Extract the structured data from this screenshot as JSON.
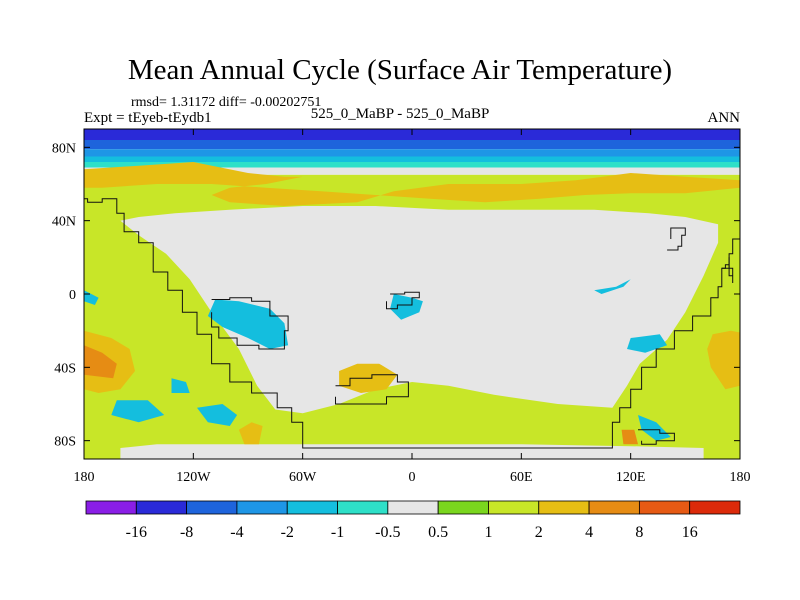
{
  "title": "Mean Annual Cycle (Surface Air Temperature)",
  "stats_line": "rmsd= 1.31172 diff= -0.00202751",
  "experiment_line": "Expt = tEyeb-tEydb1",
  "case_line": "525_0_MaBP - 525_0_MaBP",
  "season": "ANN",
  "chart_data": {
    "type": "heatmap",
    "title": "Mean Annual Cycle (Surface Air Temperature)",
    "projection": "cylindrical equidistant map, lon -180..180, lat -90..90",
    "x_range": [
      -180,
      180
    ],
    "y_range": [
      -90,
      90
    ],
    "x_ticks": [
      {
        "value": -180,
        "label": "180"
      },
      {
        "value": -120,
        "label": "120W"
      },
      {
        "value": -60,
        "label": "60W"
      },
      {
        "value": 0,
        "label": "0"
      },
      {
        "value": 60,
        "label": "60E"
      },
      {
        "value": 120,
        "label": "120E"
      },
      {
        "value": 180,
        "label": "180"
      }
    ],
    "y_ticks": [
      {
        "value": 80,
        "label": "80N"
      },
      {
        "value": 40,
        "label": "40N"
      },
      {
        "value": 0,
        "label": "0"
      },
      {
        "value": -40,
        "label": "40S"
      },
      {
        "value": -80,
        "label": "80S"
      }
    ],
    "colorbar": {
      "orientation": "horizontal",
      "labels": [
        "-16",
        "-8",
        "-4",
        "-2",
        "-1",
        "-0.5",
        "0.5",
        "1",
        "2",
        "4",
        "8",
        "16"
      ],
      "colors": [
        "#8a1ee6",
        "#2a2ad8",
        "#1e64dc",
        "#1e96e6",
        "#14bede",
        "#2ee0c8",
        "#e6e6e6",
        "#7ad61e",
        "#c8e628",
        "#e6be14",
        "#e68c14",
        "#e65a14",
        "#dc2a0a"
      ]
    },
    "zonal_bands": [
      {
        "lat_min": 84,
        "lat_max": 90,
        "category": "-8"
      },
      {
        "lat_min": 79,
        "lat_max": 84,
        "category": "-4"
      },
      {
        "lat_min": 75,
        "lat_max": 79,
        "category": "-2"
      },
      {
        "lat_min": 72,
        "lat_max": 75,
        "category": "-1"
      },
      {
        "lat_min": 69,
        "lat_max": 72,
        "category": "-0.5"
      },
      {
        "lat_min": 65,
        "lat_max": 69,
        "category": "0.5"
      },
      {
        "lat_min": -90,
        "lat_max": 65,
        "category": "1"
      }
    ],
    "regions": [
      {
        "category": "0.5",
        "points": [
          [
            -160,
            40
          ],
          [
            -150,
            32
          ],
          [
            -135,
            22
          ],
          [
            -122,
            8
          ],
          [
            -110,
            -10
          ],
          [
            -95,
            -30
          ],
          [
            -85,
            -50
          ],
          [
            -75,
            -63
          ],
          [
            -60,
            -65
          ],
          [
            -40,
            -60
          ],
          [
            -20,
            -52
          ],
          [
            0,
            -48
          ],
          [
            20,
            -50
          ],
          [
            45,
            -55
          ],
          [
            80,
            -60
          ],
          [
            110,
            -62
          ],
          [
            118,
            -50
          ],
          [
            125,
            -38
          ],
          [
            140,
            -25
          ],
          [
            150,
            -10
          ],
          [
            160,
            10
          ],
          [
            168,
            28
          ],
          [
            168,
            38
          ],
          [
            150,
            42
          ],
          [
            130,
            44
          ],
          [
            100,
            46
          ],
          [
            60,
            46
          ],
          [
            20,
            46
          ],
          [
            -20,
            48
          ],
          [
            -60,
            48
          ],
          [
            -100,
            46
          ],
          [
            -130,
            44
          ],
          [
            -150,
            42
          ]
        ]
      },
      {
        "category": "0.5",
        "points": [
          [
            -160,
            -84
          ],
          [
            -140,
            -82
          ],
          [
            -110,
            -82
          ],
          [
            -60,
            -82
          ],
          [
            0,
            -82
          ],
          [
            60,
            -82
          ],
          [
            120,
            -83
          ],
          [
            160,
            -84
          ],
          [
            160,
            -90
          ],
          [
            -160,
            -90
          ]
        ]
      },
      {
        "category": "2",
        "points": [
          [
            -180,
            68
          ],
          [
            -150,
            70
          ],
          [
            -120,
            72
          ],
          [
            -90,
            66
          ],
          [
            -70,
            64
          ],
          [
            -60,
            64
          ],
          [
            -80,
            60
          ],
          [
            -100,
            58
          ],
          [
            -110,
            54
          ],
          [
            -100,
            50
          ],
          [
            -70,
            48
          ],
          [
            -30,
            50
          ],
          [
            -10,
            56
          ],
          [
            20,
            60
          ],
          [
            60,
            60
          ],
          [
            90,
            62
          ],
          [
            120,
            66
          ],
          [
            150,
            64
          ],
          [
            180,
            62
          ],
          [
            180,
            58
          ],
          [
            150,
            55
          ],
          [
            120,
            55
          ],
          [
            95,
            54
          ],
          [
            70,
            52
          ],
          [
            40,
            50
          ],
          [
            10,
            52
          ],
          [
            -20,
            54
          ],
          [
            -50,
            56
          ],
          [
            -80,
            58
          ],
          [
            -110,
            60
          ],
          [
            -140,
            60
          ],
          [
            -170,
            58
          ],
          [
            -180,
            58
          ]
        ]
      },
      {
        "category": "2",
        "points": [
          [
            -180,
            -20
          ],
          [
            -165,
            -24
          ],
          [
            -155,
            -30
          ],
          [
            -152,
            -42
          ],
          [
            -160,
            -52
          ],
          [
            -172,
            -54
          ],
          [
            -180,
            -52
          ]
        ]
      },
      {
        "category": "2",
        "points": [
          [
            165,
            -22
          ],
          [
            175,
            -20
          ],
          [
            180,
            -21
          ],
          [
            180,
            -50
          ],
          [
            172,
            -52
          ],
          [
            164,
            -40
          ],
          [
            162,
            -30
          ]
        ]
      },
      {
        "category": "2",
        "points": [
          [
            -40,
            -42
          ],
          [
            -30,
            -38
          ],
          [
            -18,
            -38
          ],
          [
            -8,
            -44
          ],
          [
            -14,
            -52
          ],
          [
            -28,
            -54
          ],
          [
            -40,
            -50
          ]
        ]
      },
      {
        "category": "2",
        "points": [
          [
            -95,
            -74
          ],
          [
            -88,
            -70
          ],
          [
            -82,
            -72
          ],
          [
            -84,
            -82
          ],
          [
            -92,
            -82
          ]
        ]
      },
      {
        "category": "4",
        "points": [
          [
            -180,
            -28
          ],
          [
            -170,
            -32
          ],
          [
            -162,
            -38
          ],
          [
            -164,
            -46
          ],
          [
            -180,
            -44
          ]
        ]
      },
      {
        "category": "4",
        "points": [
          [
            115,
            -74
          ],
          [
            122,
            -74
          ],
          [
            124,
            -82
          ],
          [
            116,
            -82
          ]
        ]
      },
      {
        "category": "-1",
        "points": [
          [
            -108,
            -3
          ],
          [
            -95,
            -4
          ],
          [
            -78,
            -8
          ],
          [
            -70,
            -16
          ],
          [
            -68,
            -28
          ],
          [
            -78,
            -30
          ],
          [
            -90,
            -24
          ],
          [
            -104,
            -18
          ],
          [
            -112,
            -12
          ]
        ]
      },
      {
        "category": "-1",
        "points": [
          [
            -10,
            0
          ],
          [
            0,
            -2
          ],
          [
            6,
            -4
          ],
          [
            4,
            -10
          ],
          [
            -6,
            -14
          ],
          [
            -12,
            -8
          ]
        ]
      },
      {
        "category": "-1",
        "points": [
          [
            120,
            -24
          ],
          [
            136,
            -22
          ],
          [
            140,
            -28
          ],
          [
            128,
            -32
          ],
          [
            118,
            -30
          ]
        ]
      },
      {
        "category": "-1",
        "points": [
          [
            -132,
            -46
          ],
          [
            -124,
            -48
          ],
          [
            -122,
            -54
          ],
          [
            -132,
            -54
          ]
        ]
      },
      {
        "category": "-1",
        "points": [
          [
            -118,
            -62
          ],
          [
            -104,
            -60
          ],
          [
            -96,
            -66
          ],
          [
            -100,
            -72
          ],
          [
            -112,
            -70
          ]
        ]
      },
      {
        "category": "-1",
        "points": [
          [
            -162,
            -58
          ],
          [
            -145,
            -58
          ],
          [
            -136,
            -66
          ],
          [
            -150,
            -70
          ],
          [
            -165,
            -66
          ]
        ]
      },
      {
        "category": "-1",
        "points": [
          [
            124,
            -66
          ],
          [
            134,
            -70
          ],
          [
            142,
            -78
          ],
          [
            134,
            -80
          ],
          [
            126,
            -74
          ]
        ]
      },
      {
        "category": "-1",
        "points": [
          [
            100,
            2
          ],
          [
            112,
            4
          ],
          [
            120,
            8
          ],
          [
            116,
            4
          ],
          [
            104,
            0
          ]
        ]
      },
      {
        "category": "-1",
        "points": [
          [
            -180,
            2
          ],
          [
            -172,
            -2
          ],
          [
            -174,
            -6
          ],
          [
            -180,
            -4
          ]
        ]
      }
    ],
    "coastlines": [
      [
        [
          -180,
          52
        ],
        [
          -178,
          50
        ],
        [
          -170,
          52
        ],
        [
          -162,
          44
        ],
        [
          -158,
          34
        ],
        [
          -150,
          28
        ],
        [
          -142,
          12
        ],
        [
          -134,
          2
        ],
        [
          -126,
          -10
        ],
        [
          -118,
          -22
        ],
        [
          -110,
          -38
        ],
        [
          -100,
          -48
        ],
        [
          -88,
          -54
        ],
        [
          -74,
          -62
        ],
        [
          -66,
          -70
        ],
        [
          -60,
          -78
        ],
        [
          -60,
          -84
        ],
        [
          0,
          -84
        ],
        [
          60,
          -84
        ],
        [
          110,
          -84
        ],
        [
          110,
          -70
        ],
        [
          114,
          -62
        ],
        [
          120,
          -52
        ],
        [
          126,
          -40
        ],
        [
          134,
          -30
        ],
        [
          144,
          -20
        ],
        [
          154,
          -12
        ],
        [
          164,
          -2
        ],
        [
          168,
          4
        ],
        [
          170,
          14
        ],
        [
          174,
          22
        ],
        [
          176,
          30
        ],
        [
          180,
          32
        ]
      ],
      [
        [
          170,
          14
        ],
        [
          172,
          16
        ],
        [
          174,
          10
        ],
        [
          176,
          6
        ],
        [
          176,
          14
        ],
        [
          174,
          20
        ]
      ],
      [
        [
          -110,
          -3
        ],
        [
          -100,
          -2
        ],
        [
          -88,
          -4
        ],
        [
          -78,
          -12
        ],
        [
          -68,
          -20
        ],
        [
          -70,
          -30
        ],
        [
          -84,
          -28
        ],
        [
          -96,
          -24
        ],
        [
          -106,
          -18
        ],
        [
          -110,
          -10
        ]
      ],
      [
        [
          -12,
          0
        ],
        [
          -4,
          1
        ],
        [
          4,
          -2
        ],
        [
          0,
          -6
        ],
        [
          -8,
          -8
        ],
        [
          -14,
          -4
        ]
      ],
      [
        [
          -42,
          -50
        ],
        [
          -34,
          -46
        ],
        [
          -22,
          -44
        ],
        [
          -8,
          -48
        ],
        [
          -2,
          -56
        ],
        [
          -14,
          -60
        ],
        [
          -30,
          -60
        ],
        [
          -42,
          -56
        ]
      ],
      [
        [
          140,
          24
        ],
        [
          146,
          26
        ],
        [
          148,
          32
        ],
        [
          150,
          36
        ],
        [
          142,
          30
        ]
      ],
      [
        [
          124,
          -74
        ],
        [
          136,
          -76
        ],
        [
          144,
          -80
        ],
        [
          134,
          -82
        ],
        [
          126,
          -80
        ]
      ]
    ]
  }
}
